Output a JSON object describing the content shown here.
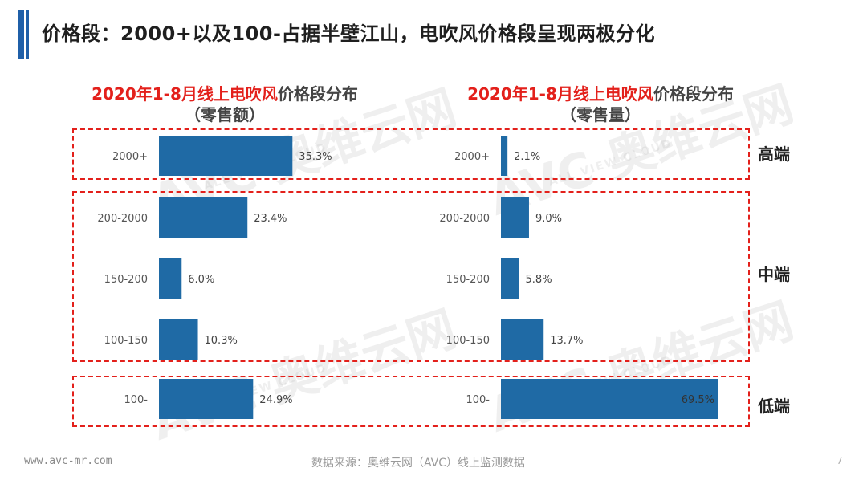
{
  "page": {
    "title": "价格段：2000+以及100-占据半壁江山，电吹风价格段呈现两极分化",
    "accent_color": "#1f5fa8",
    "footer_url": "www.avc-mr.com",
    "footer_source": "数据来源：奥维云网（AVC）线上监测数据",
    "page_number": "7",
    "watermark": "AVC 奥维云网",
    "watermark_sub": "ALL VIEW CLOUD"
  },
  "segments": {
    "high": "高端",
    "mid": "中端",
    "low": "低端",
    "box_color": "#e3201b"
  },
  "chart_data": [
    {
      "type": "bar",
      "orientation": "horizontal",
      "title_red": "2020年1-8月线上电吹风",
      "title_gray": "价格段分布",
      "subtitle": "（零售额）",
      "categories": [
        "2000+",
        "200-2000",
        "150-200",
        "100-150",
        "100-"
      ],
      "values": [
        35.3,
        23.4,
        6.0,
        10.3,
        24.9
      ],
      "value_labels": [
        "35.3%",
        "23.4%",
        "6.0%",
        "10.3%",
        "24.9%"
      ],
      "unit": "%",
      "bar_color": "#1f6aa5",
      "xlim": [
        0,
        45
      ],
      "grid": false
    },
    {
      "type": "bar",
      "orientation": "horizontal",
      "title_red": "2020年1-8月线上电吹风",
      "title_gray": "价格段分布",
      "subtitle": "（零售量）",
      "categories": [
        "2000+",
        "200-2000",
        "150-200",
        "100-150",
        "100-"
      ],
      "values": [
        2.1,
        9.0,
        5.8,
        13.7,
        69.5
      ],
      "value_labels": [
        "2.1%",
        "9.0%",
        "5.8%",
        "13.7%",
        "69.5%"
      ],
      "unit": "%",
      "bar_color": "#1f6aa5",
      "xlim": [
        0,
        69.5
      ],
      "grid": false
    }
  ]
}
